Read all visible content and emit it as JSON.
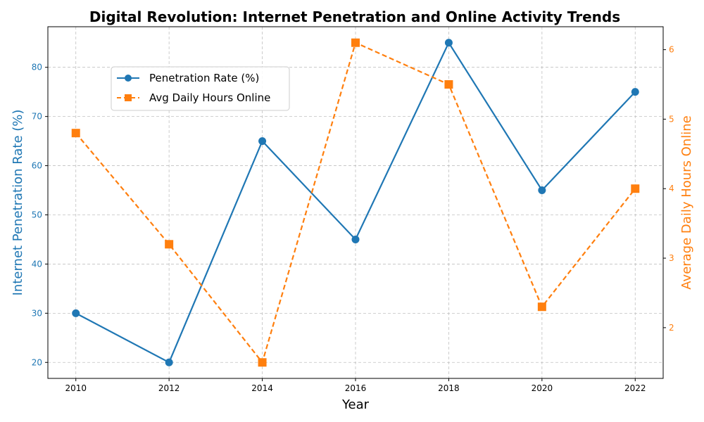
{
  "chart_data": {
    "type": "line",
    "title": "Digital Revolution: Internet Penetration and Online Activity Trends",
    "xlabel": "Year",
    "ylabel_left": "Internet Penetration Rate (%)",
    "ylabel_right": "Average Daily Hours Online",
    "x": [
      2010,
      2012,
      2014,
      2016,
      2018,
      2020,
      2022
    ],
    "xlim": [
      2009.4,
      2022.6
    ],
    "x_ticks": [
      2010,
      2012,
      2014,
      2016,
      2018,
      2020,
      2022
    ],
    "grid": true,
    "legend_position": "upper-left",
    "series": [
      {
        "name": "Penetration Rate (%)",
        "axis": "left",
        "color": "#1f77b4",
        "line_style": "solid",
        "marker": "circle",
        "values": [
          30,
          20,
          65,
          45,
          85,
          55,
          75
        ]
      },
      {
        "name": "Avg Daily Hours Online",
        "axis": "right",
        "color": "#ff7f0e",
        "line_style": "dashed",
        "marker": "square",
        "values": [
          4.8,
          3.2,
          1.5,
          6.1,
          5.5,
          2.3,
          4.0
        ]
      }
    ],
    "y_left": {
      "lim": [
        16.75,
        88.25
      ],
      "ticks": [
        20,
        30,
        40,
        50,
        60,
        70,
        80
      ],
      "color": "#1f77b4"
    },
    "y_right": {
      "lim": [
        1.27,
        6.33
      ],
      "ticks": [
        2,
        3,
        4,
        5,
        6
      ],
      "color": "#ff7f0e"
    }
  }
}
